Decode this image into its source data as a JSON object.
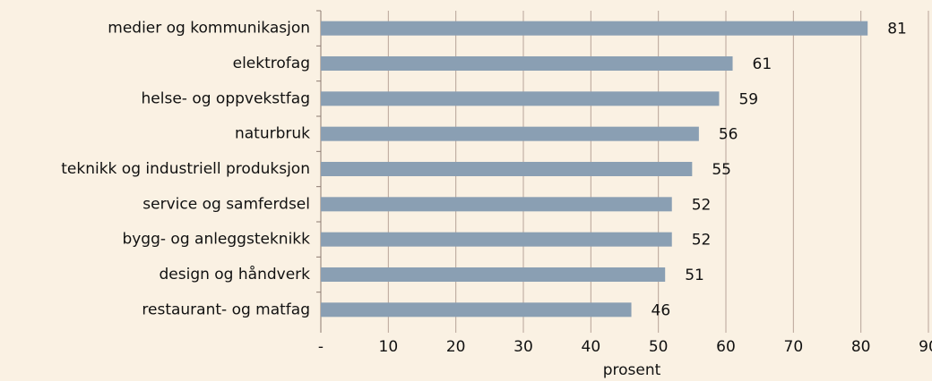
{
  "chart_data": {
    "type": "bar",
    "orientation": "horizontal",
    "categories": [
      "medier og kommunikasjon",
      "elektrofag",
      "helse- og oppvekstfag",
      "naturbruk",
      "teknikk og industriell produksjon",
      "service og samferdsel",
      "bygg- og anleggsteknikk",
      "design og håndverk",
      "restaurant- og matfag"
    ],
    "values": [
      81,
      61,
      59,
      56,
      55,
      52,
      52,
      51,
      46
    ],
    "color": "#8a9fb3",
    "xlim": [
      0,
      90
    ],
    "xticks": [
      {
        "value": 0,
        "label": "-"
      },
      10,
      20,
      30,
      40,
      50,
      60,
      70,
      80,
      90
    ],
    "xlabel": "prosent",
    "grid": true
  }
}
